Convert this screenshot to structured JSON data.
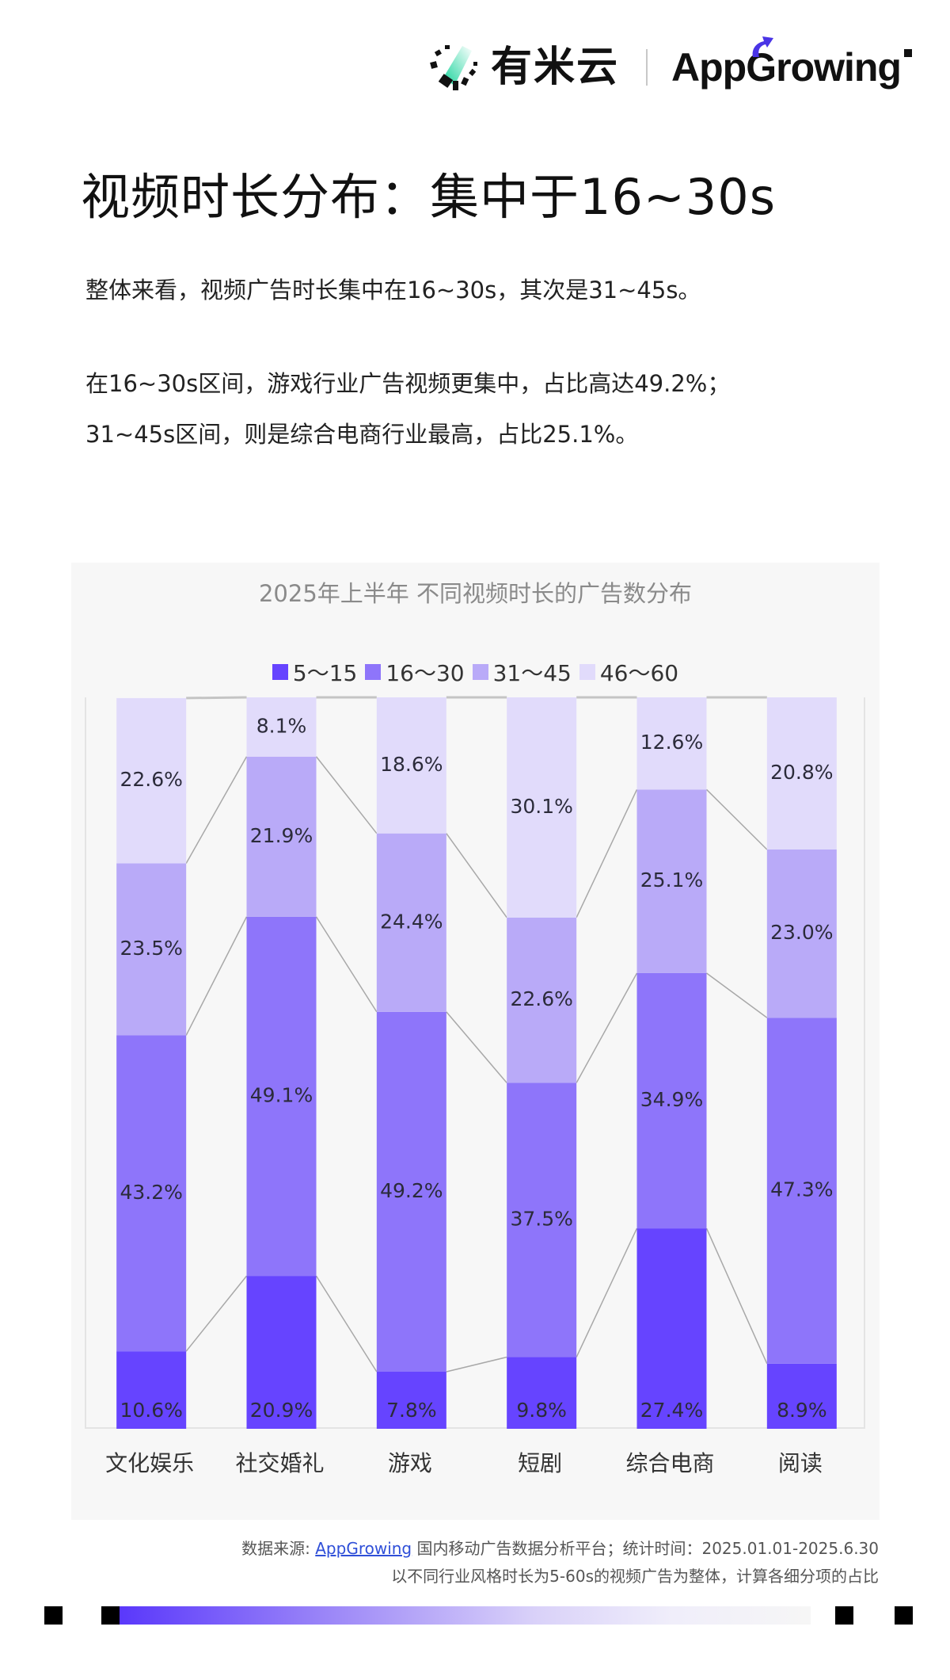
{
  "header": {
    "logo_cn": "有米云",
    "logo_en_prefix": "App",
    "logo_en_suffix": "Growing",
    "accent_color": "#4a34e6",
    "logo_green": "#16d39a"
  },
  "page_title": "视频时长分布：集中于16~30s",
  "paragraphs": [
    "整体来看，视频广告时长集中在16~30s，其次是31~45s。",
    "在16~30s区间，游戏行业广告视频更集中，占比高达49.2%；",
    "31~45s区间，则是综合电商行业最高，占比25.1%。"
  ],
  "chart_data": {
    "type": "bar",
    "stacked": true,
    "percent_stacked": true,
    "title": "2025年上半年 不同视频时长的广告数分布",
    "xlabel": "",
    "ylabel": "",
    "ylim": [
      0,
      100
    ],
    "legend_position": "top",
    "grid": false,
    "categories": [
      "文化娱乐",
      "社交婚礼",
      "游戏",
      "短剧",
      "综合电商",
      "阅读"
    ],
    "series": [
      {
        "name": "5～15",
        "color": "#6644ff",
        "values": [
          10.6,
          20.9,
          7.8,
          9.8,
          27.4,
          8.9
        ],
        "labels": [
          "10.6%",
          "20.9%",
          "7.8%",
          "9.8%",
          "27.4%",
          "8.9%"
        ]
      },
      {
        "name": "16～30",
        "color": "#8e75fa",
        "values": [
          43.2,
          49.1,
          49.2,
          37.5,
          34.9,
          47.3
        ],
        "labels": [
          "43.2%",
          "49.1%",
          "49.2%",
          "37.5%",
          "34.9%",
          "47.3%"
        ]
      },
      {
        "name": "31～45",
        "color": "#b9aaf8",
        "values": [
          23.5,
          21.9,
          24.4,
          22.6,
          25.1,
          23.0
        ],
        "labels": [
          "23.5%",
          "21.9%",
          "24.4%",
          "22.6%",
          "25.1%",
          "23.0%"
        ]
      },
      {
        "name": "46～60",
        "color": "#e1dbfb",
        "values": [
          22.6,
          8.1,
          18.6,
          30.1,
          12.6,
          20.8
        ],
        "labels": [
          "22.6%",
          "8.1%",
          "18.6%",
          "30.1%",
          "12.6%",
          "20.8%"
        ]
      }
    ],
    "series_lines": true
  },
  "footer": {
    "source_prefix": "数据来源: ",
    "source_link": "AppGrowing",
    "source_suffix": " 国内移动广告数据分析平台；统计时间：2025.01.01-2025.6.30",
    "note": "以不同行业风格时长为5-60s的视频广告为整体，计算各细分项的占比"
  }
}
